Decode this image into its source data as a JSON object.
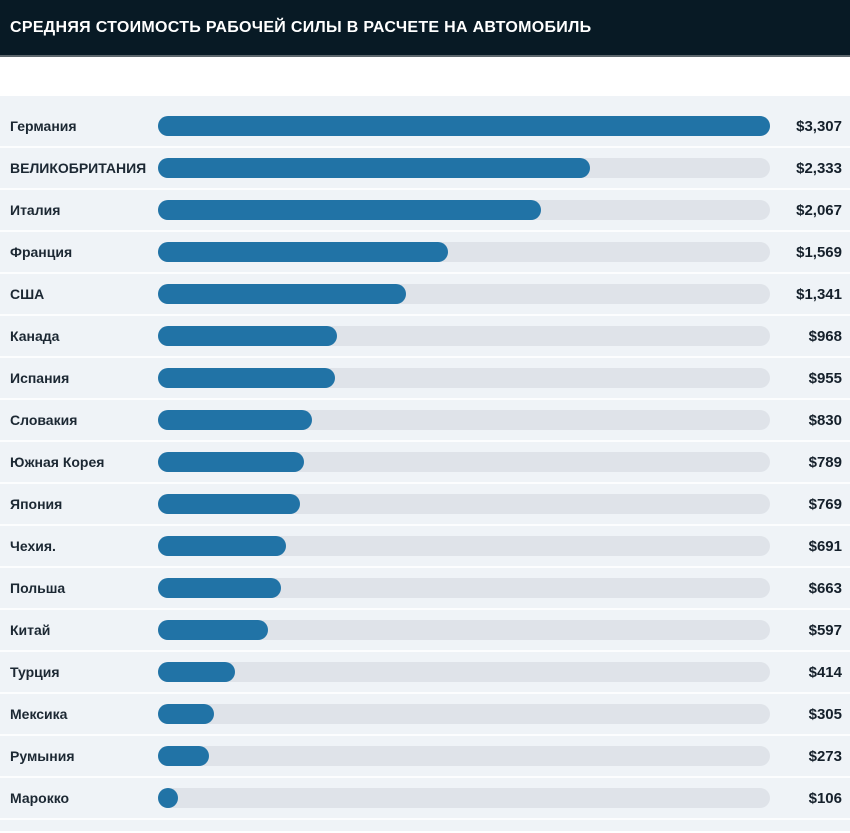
{
  "header": {
    "title": "СРЕДНЯЯ СТОИМОСТЬ РАБОЧЕЙ СИЛЫ В РАСЧЕТЕ НА АВТОМОБИЛЬ"
  },
  "chart_data": {
    "type": "bar",
    "orientation": "horizontal",
    "title": "СРЕДНЯЯ СТОИМОСТЬ РАБОЧЕЙ СИЛЫ В РАСЧЕТЕ НА АВТОМОБИЛЬ",
    "unit": "USD",
    "max_value": 3307,
    "categories": [
      "Германия",
      "ВЕЛИКОБРИТАНИЯ",
      "Италия",
      "Франция",
      "США",
      "Канада",
      "Испания",
      "Словакия",
      "Южная Корея",
      "Япония",
      "Чехия.",
      "Польша",
      "Китай",
      "Турция",
      "Мексика",
      "Румыния",
      "Марокко"
    ],
    "values": [
      3307,
      2333,
      2067,
      1569,
      1341,
      968,
      955,
      830,
      789,
      769,
      691,
      663,
      597,
      414,
      305,
      273,
      106
    ],
    "value_labels": [
      "$3,307",
      "$2,333",
      "$2,067",
      "$1,569",
      "$1,341",
      "$968",
      "$955",
      "$830",
      "$789",
      "$769",
      "$691",
      "$663",
      "$597",
      "$414",
      "$305",
      "$273",
      "$106"
    ],
    "legend": [],
    "grid": false,
    "colors": {
      "bar": "#2173a6",
      "track": "#dfe3e9",
      "chart_background": "#eff3f7",
      "header_background": "#081a25",
      "label_text": "#1c2833",
      "value_text": "#15202b",
      "title_text": "#ffffff"
    }
  }
}
